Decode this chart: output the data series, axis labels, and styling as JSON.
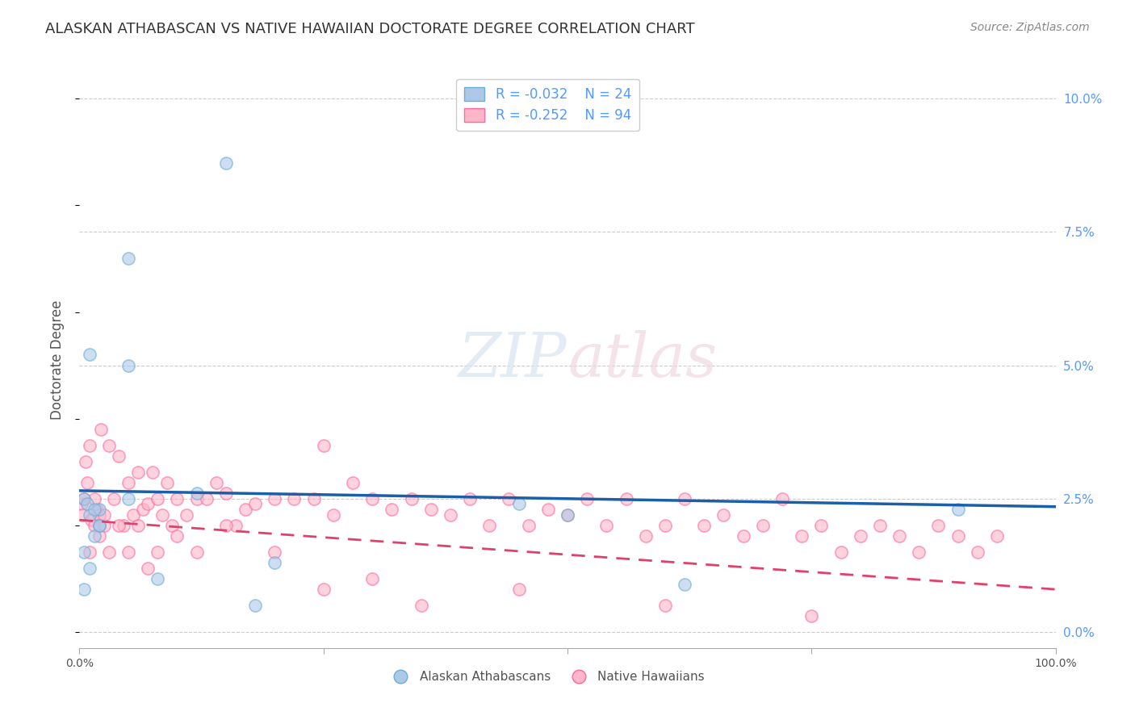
{
  "title": "ALASKAN ATHABASCAN VS NATIVE HAWAIIAN DOCTORATE DEGREE CORRELATION CHART",
  "source": "Source: ZipAtlas.com",
  "ylabel": "Doctorate Degree",
  "yticks": [
    "0.0%",
    "2.5%",
    "5.0%",
    "7.5%",
    "10.0%"
  ],
  "ytick_vals": [
    0.0,
    2.5,
    5.0,
    7.5,
    10.0
  ],
  "xlim": [
    0,
    100
  ],
  "ylim": [
    -0.3,
    10.5
  ],
  "blue_R": "-0.032",
  "blue_N": "24",
  "pink_R": "-0.252",
  "pink_N": "94",
  "legend_label_blue": "Alaskan Athabascans",
  "legend_label_pink": "Native Hawaiians",
  "blue_scatter_x": [
    2,
    2,
    5,
    1,
    0.5,
    1,
    1.5,
    2,
    0.5,
    1,
    0.5,
    0.8,
    1.5,
    15,
    5,
    18,
    8,
    12,
    20,
    62,
    5,
    45,
    90,
    50
  ],
  "blue_scatter_y": [
    2.3,
    2.0,
    5.0,
    5.2,
    2.5,
    2.2,
    1.8,
    2.0,
    1.5,
    1.2,
    0.8,
    2.4,
    2.3,
    8.8,
    7.0,
    0.5,
    1.0,
    2.6,
    1.3,
    0.9,
    2.5,
    2.4,
    2.3,
    2.2
  ],
  "pink_scatter_x": [
    0.2,
    0.3,
    0.5,
    0.6,
    0.8,
    1.0,
    1.2,
    1.5,
    1.8,
    2.0,
    2.2,
    2.5,
    3.0,
    3.5,
    4.0,
    4.5,
    5.0,
    5.5,
    6.0,
    6.5,
    7.0,
    7.5,
    8.0,
    8.5,
    9.0,
    9.5,
    10.0,
    11.0,
    12.0,
    13.0,
    14.0,
    15.0,
    16.0,
    17.0,
    18.0,
    20.0,
    22.0,
    24.0,
    25.0,
    26.0,
    28.0,
    30.0,
    32.0,
    34.0,
    36.0,
    38.0,
    40.0,
    42.0,
    44.0,
    46.0,
    48.0,
    50.0,
    52.0,
    54.0,
    56.0,
    58.0,
    60.0,
    62.0,
    64.0,
    66.0,
    68.0,
    70.0,
    72.0,
    74.0,
    76.0,
    78.0,
    80.0,
    82.0,
    84.0,
    86.0,
    88.0,
    90.0,
    92.0,
    94.0,
    1.0,
    1.5,
    2.0,
    2.5,
    3.0,
    4.0,
    5.0,
    6.0,
    7.0,
    8.0,
    10.0,
    12.0,
    15.0,
    20.0,
    25.0,
    30.0,
    35.0,
    45.0,
    60.0,
    75.0
  ],
  "pink_scatter_y": [
    2.4,
    2.2,
    2.5,
    3.2,
    2.8,
    3.5,
    2.1,
    2.0,
    2.3,
    2.2,
    3.8,
    2.0,
    3.5,
    2.5,
    3.3,
    2.0,
    2.8,
    2.2,
    3.0,
    2.3,
    2.4,
    3.0,
    2.5,
    2.2,
    2.8,
    2.0,
    2.5,
    2.2,
    2.5,
    2.5,
    2.8,
    2.6,
    2.0,
    2.3,
    2.4,
    2.5,
    2.5,
    2.5,
    3.5,
    2.2,
    2.8,
    2.5,
    2.3,
    2.5,
    2.3,
    2.2,
    2.5,
    2.0,
    2.5,
    2.0,
    2.3,
    2.2,
    2.5,
    2.0,
    2.5,
    1.8,
    2.0,
    2.5,
    2.0,
    2.2,
    1.8,
    2.0,
    2.5,
    1.8,
    2.0,
    1.5,
    1.8,
    2.0,
    1.8,
    1.5,
    2.0,
    1.8,
    1.5,
    1.8,
    1.5,
    2.5,
    1.8,
    2.2,
    1.5,
    2.0,
    1.5,
    2.0,
    1.2,
    1.5,
    1.8,
    1.5,
    2.0,
    1.5,
    0.8,
    1.0,
    0.5,
    0.8,
    0.5,
    0.3
  ],
  "blue_line_x": [
    0,
    100
  ],
  "blue_line_y": [
    2.65,
    2.35
  ],
  "pink_line_x": [
    0,
    100
  ],
  "pink_line_y": [
    2.1,
    0.8
  ],
  "pink_line_dash": [
    6,
    4
  ],
  "background_color": "#ffffff",
  "grid_color": "#cccccc",
  "blue_color": "#6baed6",
  "blue_face": "#aec8e8",
  "pink_color": "#ff69a0",
  "pink_face": "#ffb6c8",
  "title_color": "#333333",
  "source_color": "#888888",
  "axis_label_color": "#555555",
  "right_tick_color": "#5599ff",
  "scatter_alpha": 0.6,
  "scatter_size": 120,
  "blue_line_color": "#1a5fa8",
  "pink_line_color": "#e0406a"
}
